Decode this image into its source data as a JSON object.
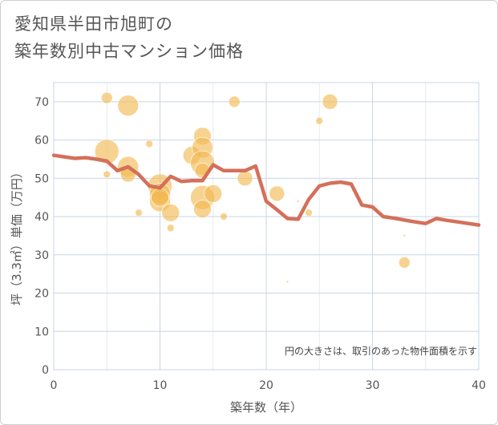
{
  "title_line1": "愛知県半田市旭町の",
  "title_line2": "築年数別中古マンション価格",
  "chart_data": {
    "type": "scatter+line",
    "title": "愛知県半田市旭町の築年数別中古マンション価格",
    "xlabel": "築年数（年）",
    "ylabel": "坪（3.3㎡）単価（万円）",
    "xlim": [
      0,
      40
    ],
    "ylim": [
      0,
      75
    ],
    "xticks": [
      0,
      10,
      20,
      30,
      40
    ],
    "yticks": [
      0,
      10,
      20,
      30,
      40,
      50,
      60,
      70
    ],
    "grid": true,
    "note": "円の大きさは、取引のあった物件面積を示す",
    "colors": {
      "bubble": "#f2b84f",
      "line": "#d4705a",
      "grid": "#c8d6e6"
    },
    "bubbles": [
      {
        "x": 5,
        "y": 71,
        "size": 2
      },
      {
        "x": 7,
        "y": 69,
        "size": 5
      },
      {
        "x": 17,
        "y": 70,
        "size": 2
      },
      {
        "x": 26,
        "y": 70,
        "size": 3
      },
      {
        "x": 25,
        "y": 65,
        "size": 1
      },
      {
        "x": 14,
        "y": 61,
        "size": 4
      },
      {
        "x": 9,
        "y": 59,
        "size": 1
      },
      {
        "x": 5,
        "y": 57,
        "size": 6
      },
      {
        "x": 13,
        "y": 56,
        "size": 4
      },
      {
        "x": 14,
        "y": 58,
        "size": 5
      },
      {
        "x": 14,
        "y": 54,
        "size": 6
      },
      {
        "x": 7,
        "y": 53,
        "size": 5
      },
      {
        "x": 7,
        "y": 51,
        "size": 3
      },
      {
        "x": 5,
        "y": 51,
        "size": 1
      },
      {
        "x": 14,
        "y": 52,
        "size": 3
      },
      {
        "x": 18,
        "y": 50,
        "size": 3
      },
      {
        "x": 10,
        "y": 48,
        "size": 6
      },
      {
        "x": 10,
        "y": 46,
        "size": 5
      },
      {
        "x": 10,
        "y": 44,
        "size": 5
      },
      {
        "x": 10,
        "y": 45,
        "size": 4
      },
      {
        "x": 11,
        "y": 41,
        "size": 4
      },
      {
        "x": 14,
        "y": 45,
        "size": 6
      },
      {
        "x": 14,
        "y": 42,
        "size": 4
      },
      {
        "x": 15,
        "y": 46,
        "size": 4
      },
      {
        "x": 8,
        "y": 41,
        "size": 1
      },
      {
        "x": 11,
        "y": 37,
        "size": 1
      },
      {
        "x": 16,
        "y": 40,
        "size": 1
      },
      {
        "x": 21,
        "y": 46,
        "size": 3
      },
      {
        "x": 23,
        "y": 44,
        "size": 0
      },
      {
        "x": 24,
        "y": 41,
        "size": 1
      },
      {
        "x": 22,
        "y": 23,
        "size": 0
      },
      {
        "x": 33,
        "y": 35,
        "size": 0
      },
      {
        "x": 33,
        "y": 28,
        "size": 2
      }
    ],
    "line": {
      "x": [
        0,
        1,
        2,
        3,
        4,
        5,
        6,
        7,
        8,
        9,
        10,
        11,
        12,
        13,
        14,
        15,
        16,
        17,
        18,
        19,
        20,
        21,
        22,
        23,
        24,
        25,
        26,
        27,
        28,
        29,
        30,
        31,
        32,
        33,
        34,
        35,
        36,
        37,
        38,
        39,
        40
      ],
      "y": [
        56,
        55.6,
        55.2,
        55.4,
        55,
        54.5,
        52,
        53,
        51,
        48,
        47.5,
        50.5,
        49.2,
        49.4,
        49.4,
        53.5,
        52,
        52,
        52,
        53.2,
        44,
        41.8,
        39.5,
        39.3,
        44.5,
        48,
        48.7,
        49,
        48.5,
        43,
        42.5,
        40,
        39.6,
        39.1,
        38.6,
        38.2,
        39.5,
        39,
        38.6,
        38.2,
        37.8
      ]
    }
  }
}
